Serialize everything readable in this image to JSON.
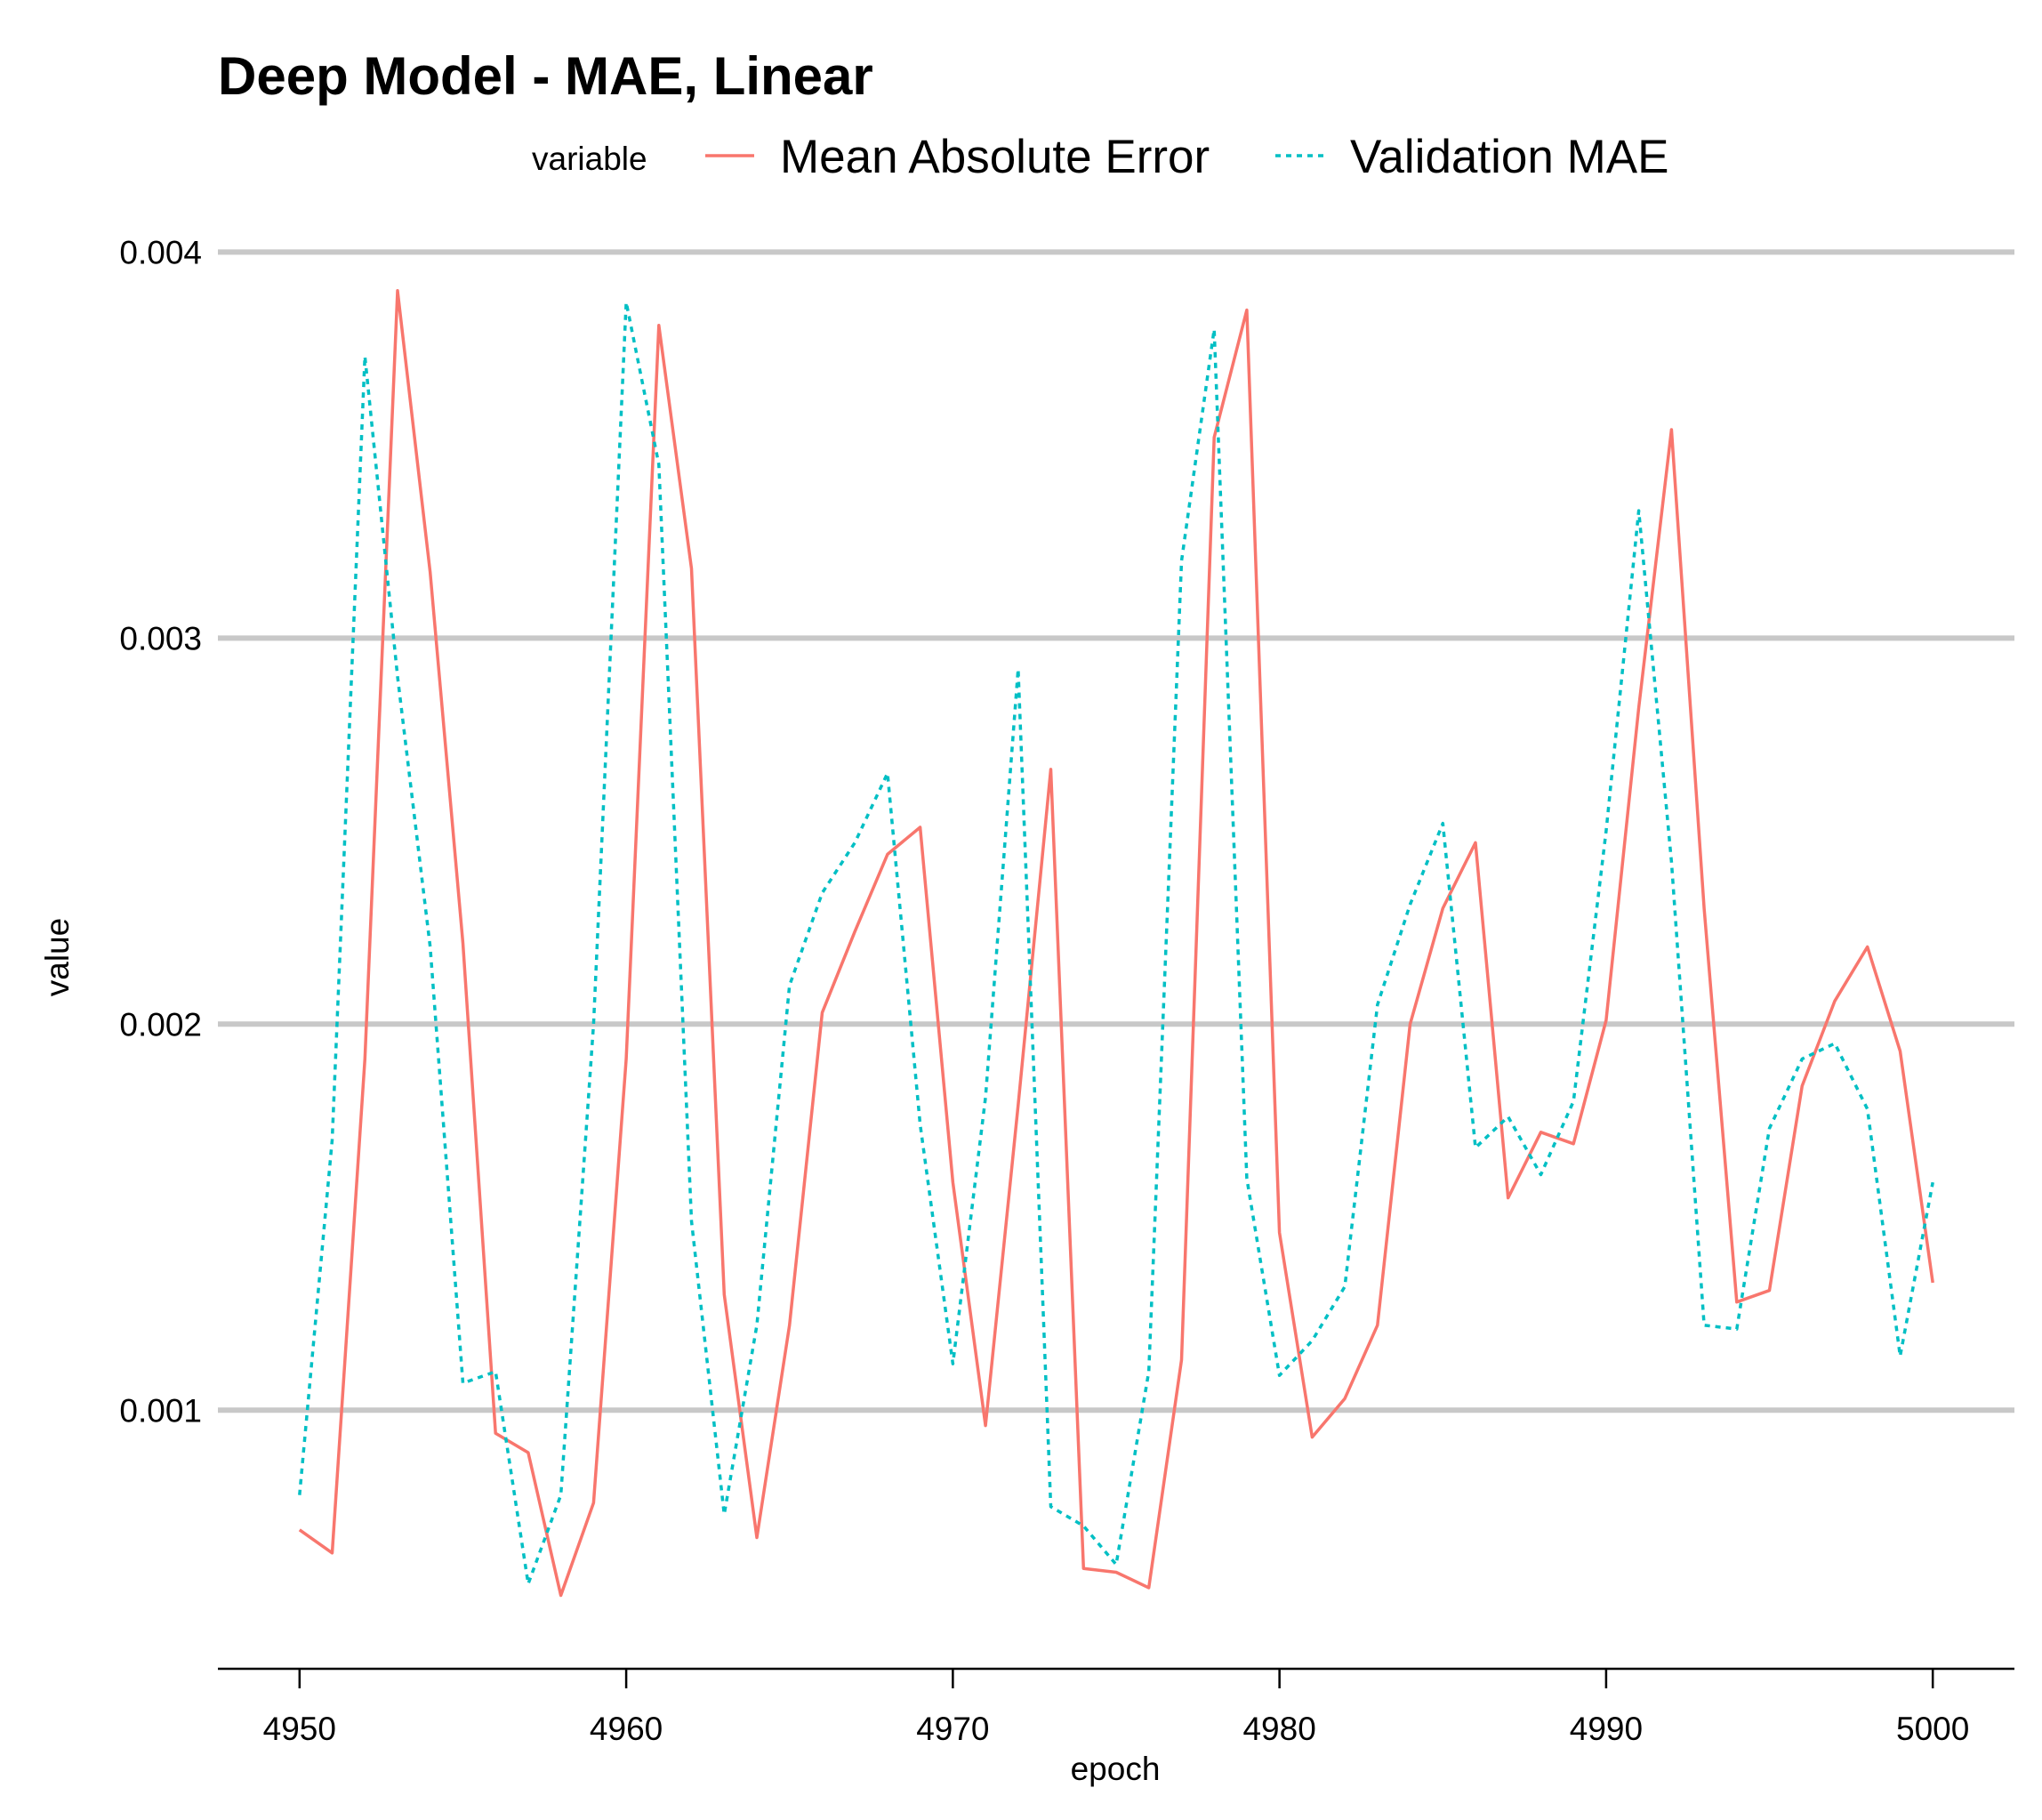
{
  "chart_data": {
    "type": "line",
    "title": "Deep Model - MAE, Linear",
    "xlabel": "epoch",
    "ylabel": "value",
    "legend_title": "variable",
    "legend_position": "top",
    "grid": "horizontal major only",
    "xlim": [
      4947.5,
      5002.5
    ],
    "ylim": [
      0.00033,
      0.0041
    ],
    "x_ticks": [
      4950,
      4960,
      4970,
      4980,
      4990,
      5000
    ],
    "x_tick_labels": [
      "4950",
      "4960",
      "4970",
      "4980",
      "4990",
      "5000"
    ],
    "y_ticks": [
      0.001,
      0.002,
      0.003,
      0.004
    ],
    "y_tick_labels": [
      "0.001",
      "0.002",
      "0.003",
      "0.004"
    ],
    "x": [
      4950,
      4951,
      4952,
      4953,
      4954,
      4955,
      4956,
      4957,
      4958,
      4959,
      4960,
      4961,
      4962,
      4963,
      4964,
      4965,
      4966,
      4967,
      4968,
      4969,
      4970,
      4971,
      4972,
      4973,
      4974,
      4975,
      4976,
      4977,
      4978,
      4979,
      4980,
      4981,
      4982,
      4983,
      4984,
      4985,
      4986,
      4987,
      4988,
      4989,
      4990,
      4991,
      4992,
      4993,
      4994,
      4995,
      4996,
      4997,
      4998,
      4999,
      5000
    ],
    "series": [
      {
        "name": "Mean Absolute Error",
        "color": "#F8766D",
        "dash": "solid",
        "values": [
          0.00069,
          0.00063,
          0.00191,
          0.0039,
          0.00317,
          0.00221,
          0.00094,
          0.00089,
          0.00052,
          0.00076,
          0.00191,
          0.00381,
          0.00318,
          0.0013,
          0.00067,
          0.00122,
          0.00203,
          0.00224,
          0.00244,
          0.00251,
          0.00159,
          0.00096,
          0.00179,
          0.00266,
          0.00059,
          0.00058,
          0.00054,
          0.00113,
          0.00352,
          0.00385,
          0.00146,
          0.00093,
          0.00103,
          0.00122,
          0.002,
          0.0023,
          0.00247,
          0.00155,
          0.00172,
          0.00169,
          0.00201,
          0.00282,
          0.00354,
          0.0023,
          0.00128,
          0.00131,
          0.00184,
          0.00206,
          0.0022,
          0.00193,
          0.00133
        ]
      },
      {
        "name": "Validation MAE",
        "color": "#00BFC4",
        "dash": "dotted",
        "values": [
          0.00078,
          0.0017,
          0.00373,
          0.0029,
          0.0022,
          0.00107,
          0.0011,
          0.00055,
          0.00078,
          0.002,
          0.00387,
          0.00345,
          0.00149,
          0.00073,
          0.00122,
          0.0021,
          0.00234,
          0.00247,
          0.00265,
          0.00174,
          0.00112,
          0.00181,
          0.00292,
          0.00075,
          0.0007,
          0.0006,
          0.0011,
          0.0032,
          0.0038,
          0.0016,
          0.00109,
          0.00118,
          0.00132,
          0.00205,
          0.00231,
          0.00252,
          0.00168,
          0.00176,
          0.00161,
          0.0018,
          0.0025,
          0.00333,
          0.00242,
          0.00122,
          0.00121,
          0.00173,
          0.00191,
          0.00195,
          0.00178,
          0.00114,
          0.00159
        ]
      }
    ]
  }
}
